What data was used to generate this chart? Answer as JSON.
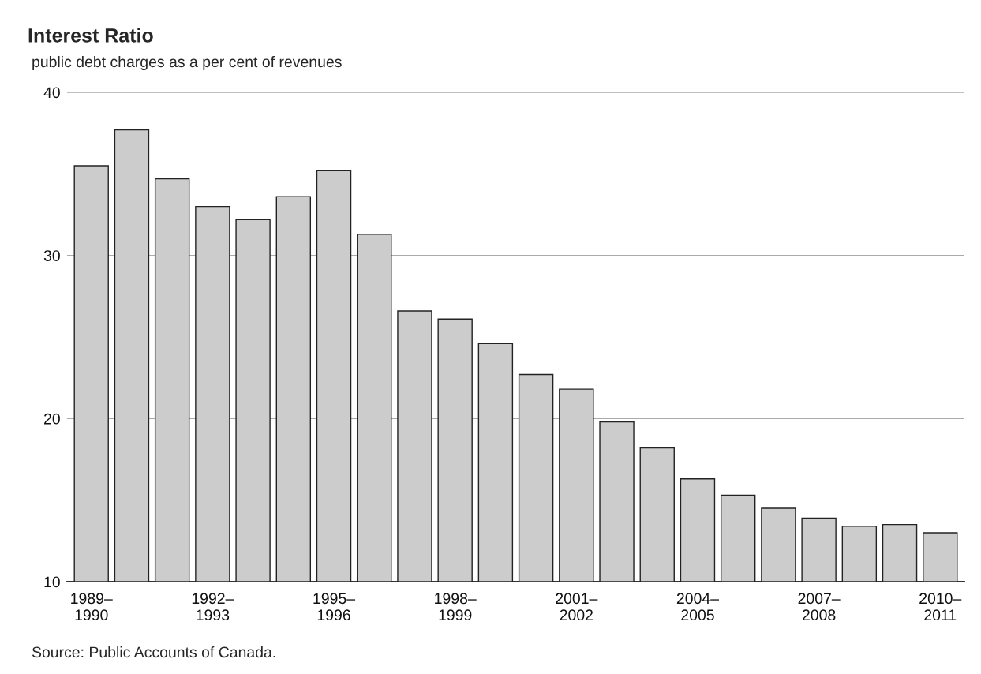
{
  "chart_data": {
    "type": "bar",
    "title": "Interest Ratio",
    "subtitle": "public debt charges as a per cent of revenues",
    "categories": [
      "1989–\n1990",
      null,
      null,
      "1992–\n1993",
      null,
      null,
      "1995–\n1996",
      null,
      null,
      "1998–\n1999",
      null,
      null,
      "2001–\n2002",
      null,
      null,
      "2004–\n2005",
      null,
      null,
      "2007–\n2008",
      null,
      null,
      "2010–\n2011"
    ],
    "values": [
      35.5,
      37.7,
      34.7,
      33.0,
      32.2,
      33.6,
      35.2,
      31.3,
      26.6,
      26.1,
      24.6,
      22.7,
      21.8,
      19.8,
      18.2,
      16.3,
      15.3,
      14.5,
      13.9,
      13.4,
      13.5,
      13.0
    ],
    "color": "#cccccc",
    "ylim": [
      10,
      40
    ],
    "yticks": [
      10,
      20,
      30,
      40
    ],
    "grid": "y",
    "annotations": [
      "Source: Public Accounts of Canada."
    ]
  }
}
